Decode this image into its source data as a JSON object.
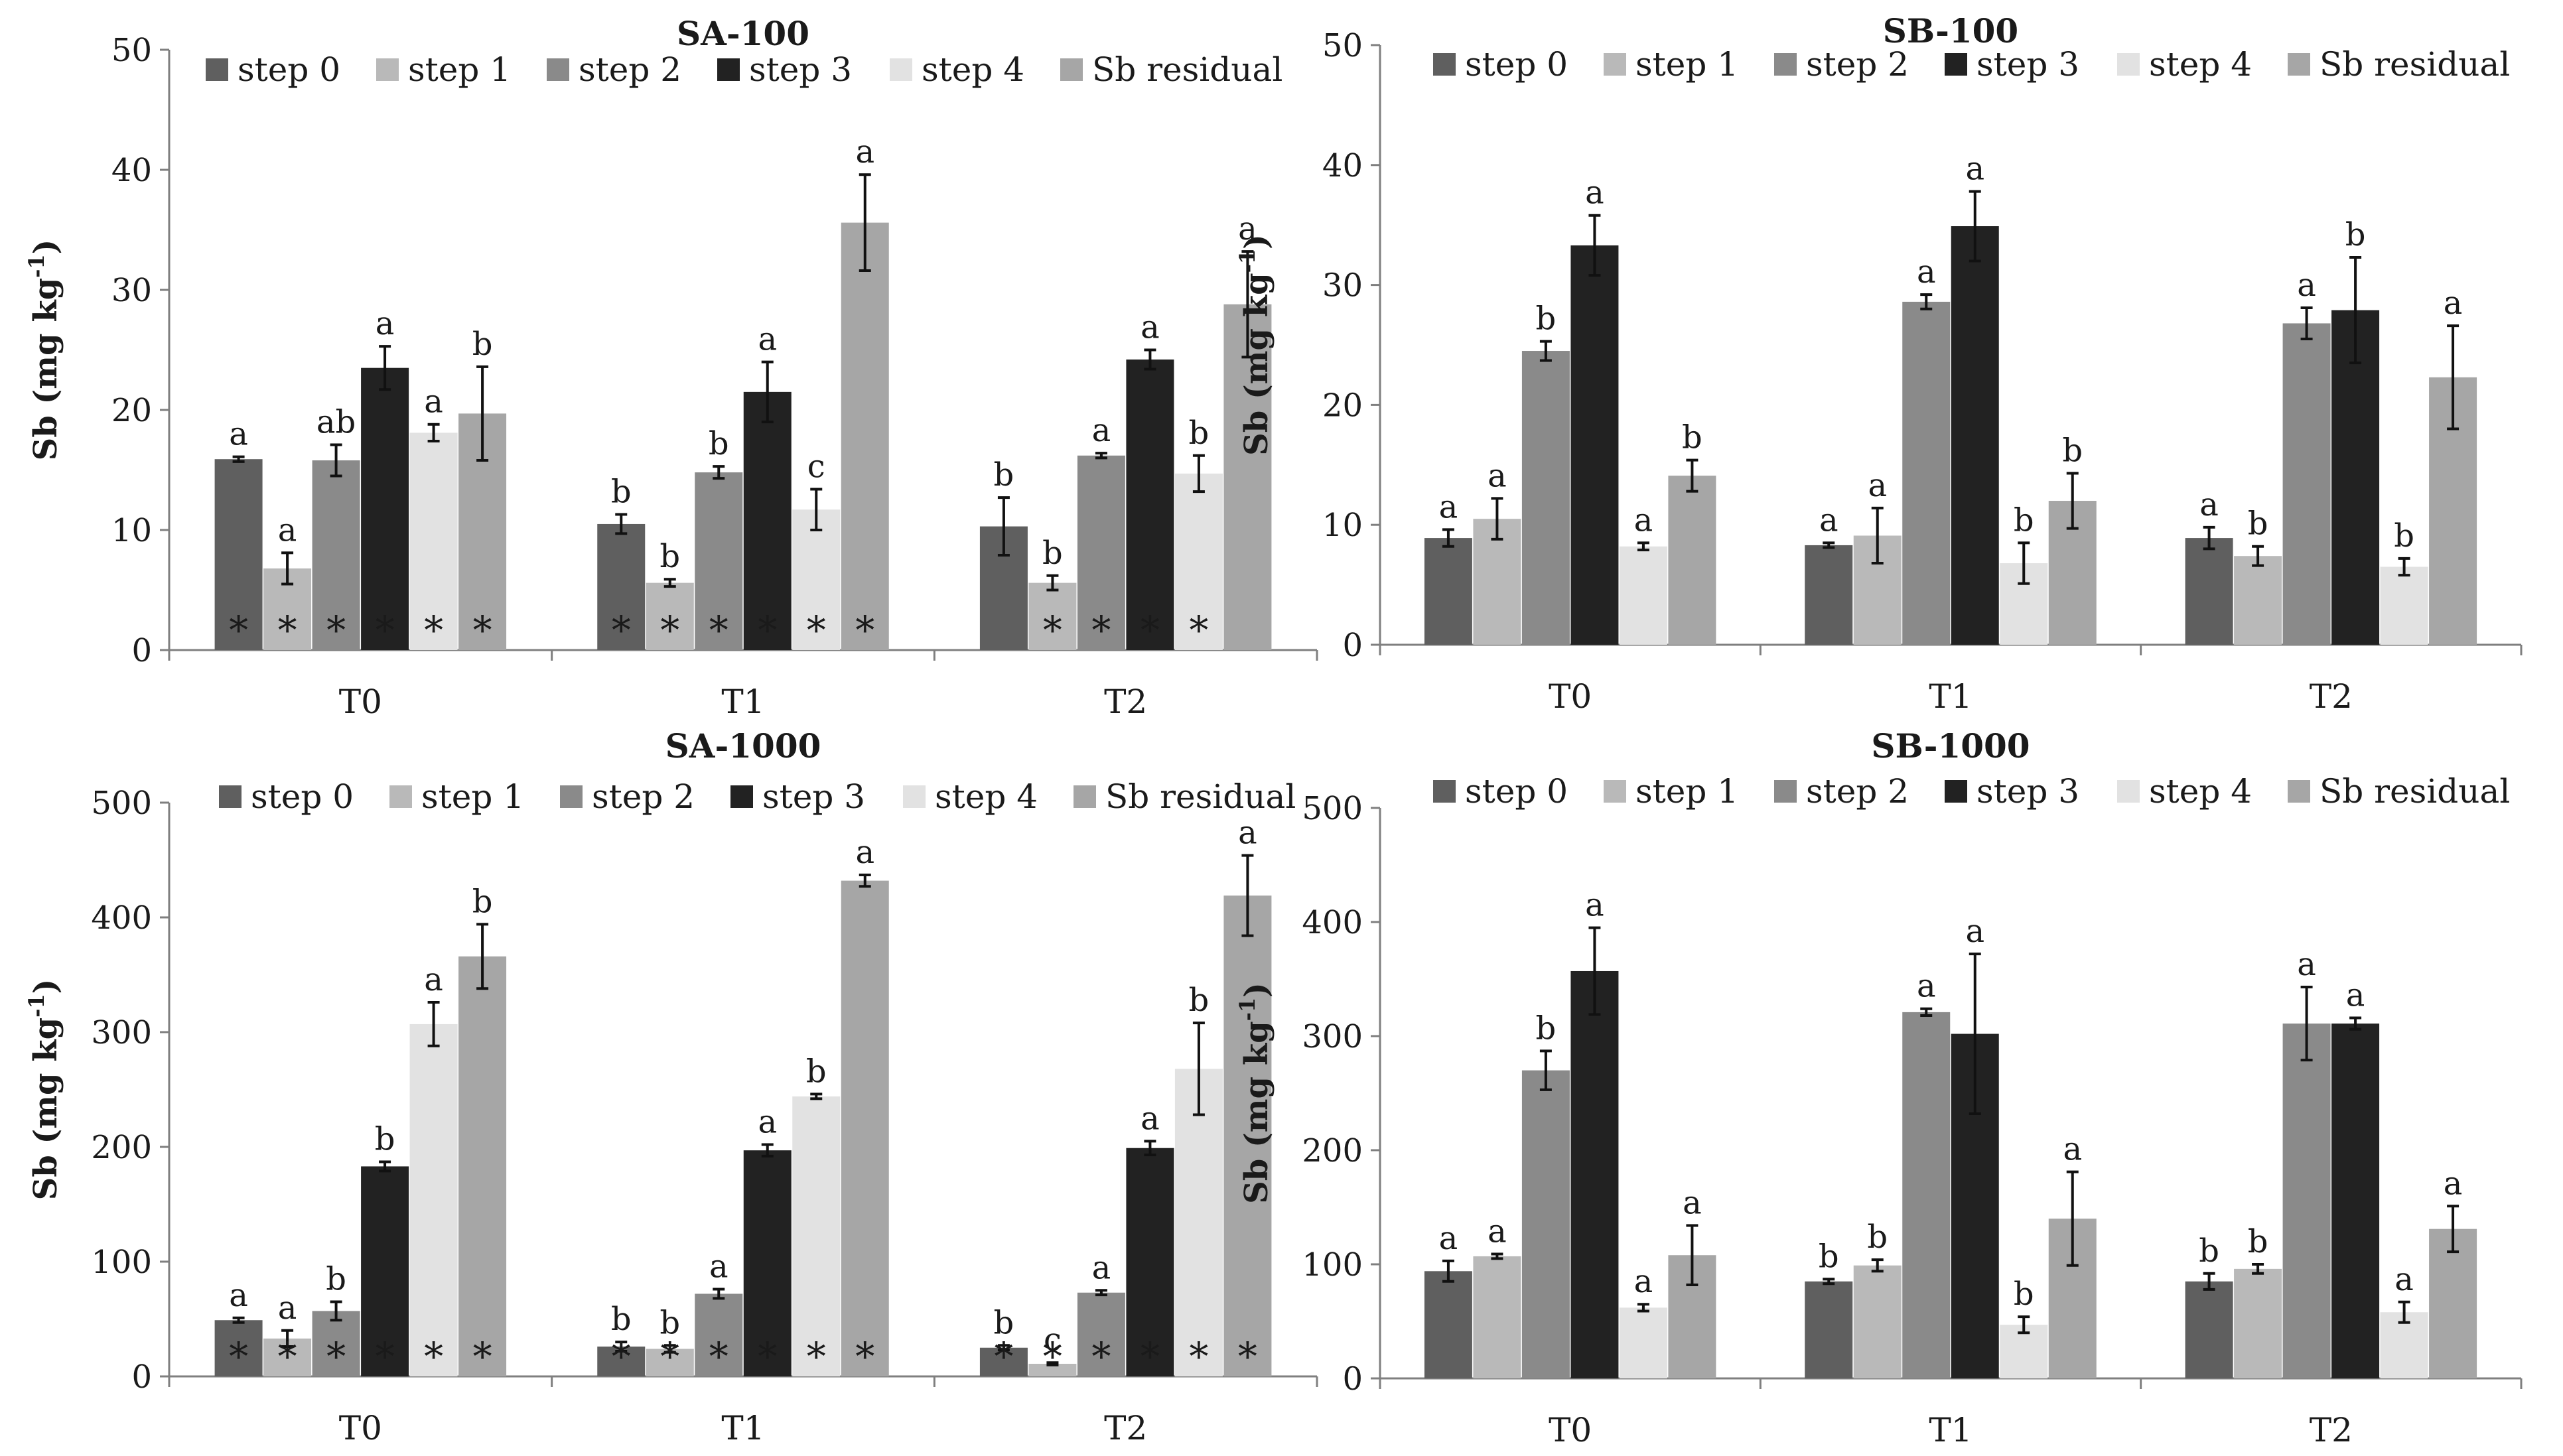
{
  "series_names": [
    "step 0",
    "step 1",
    "step 2",
    "step 3",
    "step 4",
    "Sb residual"
  ],
  "series_colors": [
    "#5f5f5f",
    "#b9b9b9",
    "#8a8a8a",
    "#222222",
    "#e2e2e2",
    "#a6a6a6"
  ],
  "y_axis_label": {
    "main": "Sb (mg kg",
    "sup": "-1",
    "close": ")"
  },
  "chart_data": [
    {
      "type": "bar",
      "title": "SA-100",
      "categories": [
        "T0",
        "T1",
        "T2"
      ],
      "ylim": [
        0,
        50
      ],
      "yticks": [
        "0",
        "10",
        "20",
        "30",
        "40",
        "50"
      ],
      "series": [
        {
          "name": "step 0",
          "values": [
            15.9,
            10.5,
            10.3
          ],
          "errors": [
            0.2,
            0.8,
            2.4
          ],
          "letters": [
            "a",
            "b",
            "b"
          ],
          "stars": [
            true,
            true,
            false
          ]
        },
        {
          "name": "step 1",
          "values": [
            6.8,
            5.6,
            5.6
          ],
          "errors": [
            1.3,
            0.3,
            0.6
          ],
          "letters": [
            "a",
            "b",
            "b"
          ],
          "stars": [
            true,
            true,
            true
          ]
        },
        {
          "name": "step 2",
          "values": [
            15.8,
            14.8,
            16.2
          ],
          "errors": [
            1.3,
            0.5,
            0.2
          ],
          "letters": [
            "ab",
            "b",
            "a"
          ],
          "stars": [
            true,
            true,
            true
          ]
        },
        {
          "name": "step 3",
          "values": [
            23.5,
            21.5,
            24.2
          ],
          "errors": [
            1.8,
            2.5,
            0.8
          ],
          "letters": [
            "a",
            "a",
            "a"
          ],
          "stars": [
            true,
            true,
            true
          ]
        },
        {
          "name": "step 4",
          "values": [
            18.1,
            11.7,
            14.7
          ],
          "errors": [
            0.7,
            1.7,
            1.5
          ],
          "letters": [
            "a",
            "c",
            "b"
          ],
          "stars": [
            true,
            true,
            true
          ]
        },
        {
          "name": "Sb residual",
          "values": [
            19.7,
            35.6,
            28.8
          ],
          "errors": [
            3.9,
            4.0,
            4.4
          ],
          "letters": [
            "b",
            "a",
            "a"
          ],
          "stars": [
            true,
            true,
            false
          ]
        }
      ]
    },
    {
      "type": "bar",
      "title": "SB-100",
      "categories": [
        "T0",
        "T1",
        "T2"
      ],
      "ylim": [
        0,
        50
      ],
      "yticks": [
        "0",
        "10",
        "20",
        "30",
        "40",
        "50"
      ],
      "series": [
        {
          "name": "step 0",
          "values": [
            8.9,
            8.3,
            8.9
          ],
          "errors": [
            0.7,
            0.2,
            0.9
          ],
          "letters": [
            "a",
            "a",
            "a"
          ],
          "stars": [
            false,
            false,
            false
          ]
        },
        {
          "name": "step 1",
          "values": [
            10.5,
            9.1,
            7.4
          ],
          "errors": [
            1.7,
            2.3,
            0.8
          ],
          "letters": [
            "a",
            "a",
            "b"
          ],
          "stars": [
            false,
            false,
            false
          ]
        },
        {
          "name": "step 2",
          "values": [
            24.5,
            28.6,
            26.8
          ],
          "errors": [
            0.8,
            0.6,
            1.3
          ],
          "letters": [
            "b",
            "a",
            "a"
          ],
          "stars": [
            false,
            false,
            false
          ]
        },
        {
          "name": "step 3",
          "values": [
            33.3,
            34.9,
            27.9
          ],
          "errors": [
            2.5,
            2.9,
            4.4
          ],
          "letters": [
            "a",
            "a",
            "b"
          ],
          "stars": [
            false,
            false,
            false
          ]
        },
        {
          "name": "step 4",
          "values": [
            8.2,
            6.8,
            6.5
          ],
          "errors": [
            0.3,
            1.7,
            0.7
          ],
          "letters": [
            "a",
            "b",
            "b"
          ],
          "stars": [
            false,
            false,
            false
          ]
        },
        {
          "name": "Sb residual",
          "values": [
            14.1,
            12.0,
            22.3
          ],
          "errors": [
            1.3,
            2.3,
            4.3
          ],
          "letters": [
            "b",
            "b",
            "a"
          ],
          "stars": [
            false,
            false,
            false
          ]
        }
      ]
    },
    {
      "type": "bar",
      "title": "SA-1000",
      "categories": [
        "T0",
        "T1",
        "T2"
      ],
      "ylim": [
        0,
        500
      ],
      "yticks": [
        "0",
        "100",
        "200",
        "300",
        "400",
        "500"
      ],
      "series": [
        {
          "name": "step 0",
          "values": [
            49,
            26,
            25
          ],
          "errors": [
            2,
            4,
            2
          ],
          "letters": [
            "a",
            "b",
            "b"
          ],
          "stars": [
            true,
            true,
            true
          ]
        },
        {
          "name": "step 1",
          "values": [
            33,
            24,
            11
          ],
          "errors": [
            7,
            3,
            1
          ],
          "letters": [
            "a",
            "b",
            "c"
          ],
          "stars": [
            true,
            true,
            true
          ]
        },
        {
          "name": "step 2",
          "values": [
            57,
            72,
            73
          ],
          "errors": [
            8,
            4,
            2
          ],
          "letters": [
            "b",
            "a",
            "a"
          ],
          "stars": [
            true,
            true,
            true
          ]
        },
        {
          "name": "step 3",
          "values": [
            183,
            197,
            199
          ],
          "errors": [
            4,
            5,
            6
          ],
          "letters": [
            "b",
            "a",
            "a"
          ],
          "stars": [
            true,
            true,
            true
          ]
        },
        {
          "name": "step 4",
          "values": [
            307,
            244,
            268
          ],
          "errors": [
            19,
            2,
            40
          ],
          "letters": [
            "a",
            "b",
            "b"
          ],
          "stars": [
            true,
            true,
            true
          ]
        },
        {
          "name": "Sb residual",
          "values": [
            366,
            432,
            419
          ],
          "errors": [
            28,
            5,
            35
          ],
          "letters": [
            "b",
            "a",
            "a"
          ],
          "stars": [
            true,
            true,
            true
          ]
        }
      ]
    },
    {
      "type": "bar",
      "title": "SB-1000",
      "categories": [
        "T0",
        "T1",
        "T2"
      ],
      "ylim": [
        0,
        500
      ],
      "yticks": [
        "0",
        "100",
        "200",
        "300",
        "400",
        "500"
      ],
      "series": [
        {
          "name": "step 0",
          "values": [
            94,
            85,
            85
          ],
          "errors": [
            9,
            2,
            7
          ],
          "letters": [
            "a",
            "b",
            "b"
          ],
          "stars": [
            false,
            false,
            false
          ]
        },
        {
          "name": "step 1",
          "values": [
            107,
            99,
            96
          ],
          "errors": [
            2,
            5,
            4
          ],
          "letters": [
            "a",
            "b",
            "b"
          ],
          "stars": [
            false,
            false,
            false
          ]
        },
        {
          "name": "step 2",
          "values": [
            270,
            321,
            311
          ],
          "errors": [
            17,
            3,
            32
          ],
          "letters": [
            "b",
            "a",
            "a"
          ],
          "stars": [
            false,
            false,
            false
          ]
        },
        {
          "name": "step 3",
          "values": [
            357,
            302,
            311
          ],
          "errors": [
            38,
            70,
            5
          ],
          "letters": [
            "a",
            "a",
            "a"
          ],
          "stars": [
            false,
            false,
            false
          ]
        },
        {
          "name": "step 4",
          "values": [
            62,
            47,
            58
          ],
          "errors": [
            3,
            7,
            9
          ],
          "letters": [
            "a",
            "b",
            "a"
          ],
          "stars": [
            false,
            false,
            false
          ]
        },
        {
          "name": "Sb residual",
          "values": [
            108,
            140,
            131
          ],
          "errors": [
            26,
            41,
            20
          ],
          "letters": [
            "a",
            "a",
            "a"
          ],
          "stars": [
            false,
            false,
            false
          ]
        }
      ]
    }
  ]
}
